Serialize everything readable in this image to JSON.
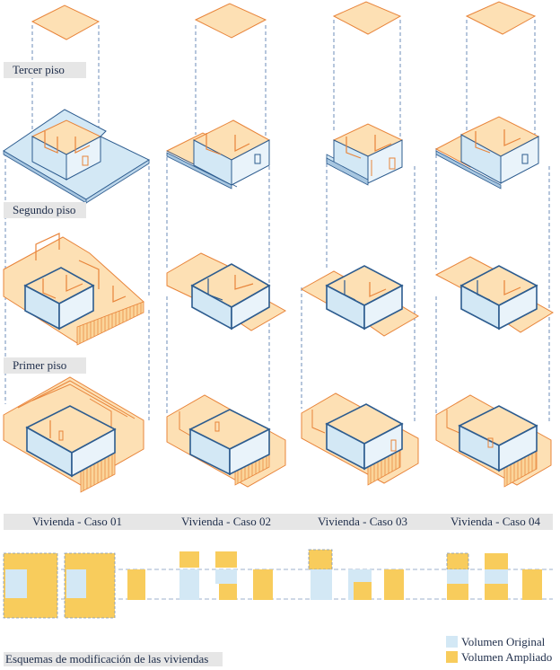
{
  "floors": [
    {
      "id": "tercer",
      "label": "Tercer piso"
    },
    {
      "id": "segundo",
      "label": "Segundo piso"
    },
    {
      "id": "primer",
      "label": "Primer piso"
    }
  ],
  "cases": [
    {
      "label": "Vivienda - Caso 01"
    },
    {
      "label": "Vivienda - Caso 02"
    },
    {
      "label": "Vivienda - Caso 03"
    },
    {
      "label": "Vivienda - Caso 04"
    }
  ],
  "schemes_title": "Esquemas de modificación de las viviendas",
  "legend": {
    "original": {
      "label": "Volumen Original",
      "color": "#d3e8f5"
    },
    "ampliado": {
      "label": "Volumen Ampliado",
      "color": "#f8cc5c"
    }
  },
  "colors": {
    "orange_stroke": "#e8843a",
    "orange_fill": "#fde0b4",
    "blue_stroke": "#2d5c8f",
    "blue_fill": "#d3e8f5",
    "dashed": "#4a70a8"
  }
}
